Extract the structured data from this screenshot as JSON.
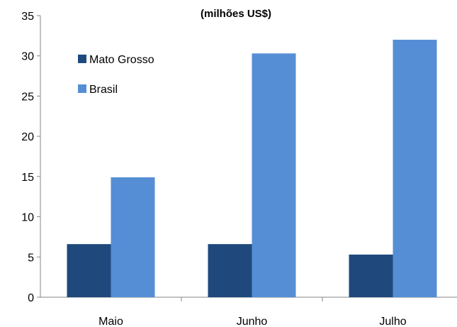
{
  "chart_data": {
    "type": "bar",
    "subtitle": "(milhões US$)",
    "categories": [
      "Maio",
      "Junho",
      "Julho"
    ],
    "series": [
      {
        "name": "Mato Grosso",
        "values": [
          6.6,
          6.6,
          5.3
        ],
        "color": "#1f497d"
      },
      {
        "name": "Brasil",
        "values": [
          14.9,
          30.3,
          32.0
        ],
        "color": "#558ed5"
      }
    ],
    "ylim": [
      0,
      35
    ],
    "yticks": [
      0,
      5,
      10,
      15,
      20,
      25,
      30,
      35
    ],
    "xlabel": "",
    "ylabel": "",
    "grid": false,
    "legend_position": "top-left"
  }
}
